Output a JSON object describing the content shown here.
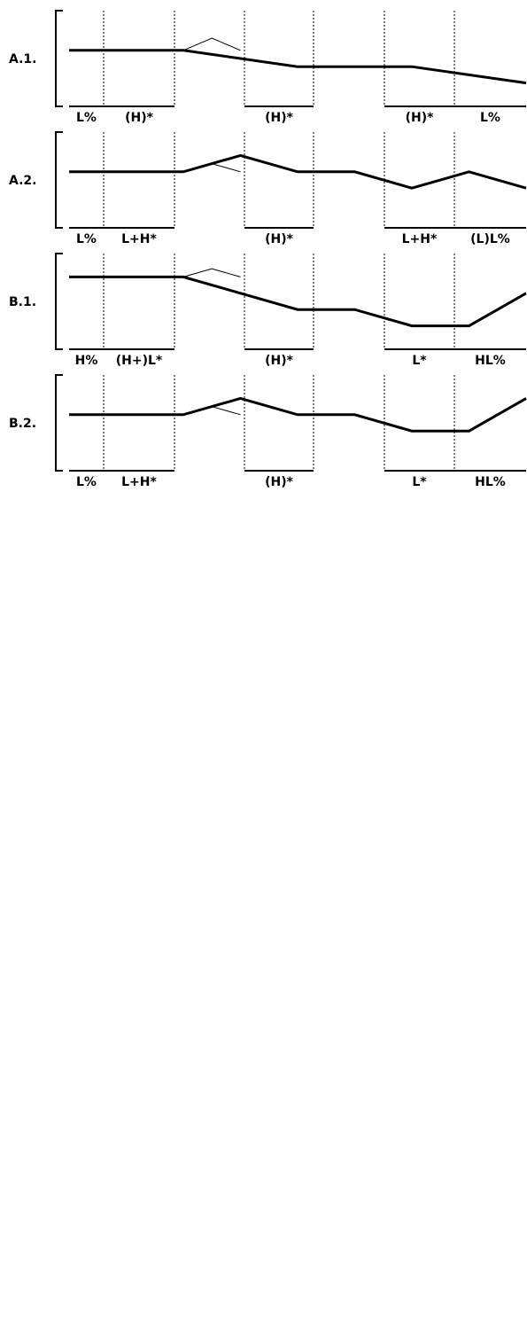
{
  "panels": [
    {
      "id": "A.1.",
      "labels": [
        "L%",
        "(H)*",
        "(H)*",
        "(H)*",
        "L%"
      ],
      "thick": [
        [
          0,
          100
        ],
        [
          160,
          100
        ],
        [
          320,
          80
        ],
        [
          480,
          80
        ],
        [
          640,
          60
        ]
      ],
      "thin": [
        [
          160,
          100
        ],
        [
          200,
          115
        ],
        [
          240,
          100
        ]
      ]
    },
    {
      "id": "A.2.",
      "labels": [
        "L%",
        "L+H*",
        "(H)*",
        "L+H*",
        "(L)L%"
      ],
      "thick": [
        [
          0,
          100
        ],
        [
          160,
          100
        ],
        [
          240,
          120
        ],
        [
          320,
          100
        ],
        [
          400,
          100
        ],
        [
          480,
          80
        ],
        [
          560,
          100
        ],
        [
          640,
          80
        ]
      ],
      "thin": [
        [
          160,
          100
        ],
        [
          200,
          110
        ],
        [
          240,
          100
        ]
      ]
    },
    {
      "id": "B.1.",
      "labels": [
        "H%",
        "(H+)L*",
        "(H)*",
        "L*",
        "HL%"
      ],
      "thick": [
        [
          0,
          120
        ],
        [
          160,
          120
        ],
        [
          240,
          100
        ],
        [
          320,
          80
        ],
        [
          400,
          80
        ],
        [
          480,
          60
        ],
        [
          560,
          60
        ],
        [
          640,
          100
        ]
      ],
      "thin": [
        [
          160,
          120
        ],
        [
          200,
          130
        ],
        [
          240,
          120
        ]
      ]
    },
    {
      "id": "B.2.",
      "labels": [
        "L%",
        "L+H*",
        "(H)*",
        "L*",
        "HL%"
      ],
      "thick": [
        [
          0,
          100
        ],
        [
          160,
          100
        ],
        [
          240,
          120
        ],
        [
          320,
          100
        ],
        [
          400,
          100
        ],
        [
          480,
          80
        ],
        [
          560,
          80
        ],
        [
          640,
          120
        ]
      ],
      "thin": [
        [
          160,
          100
        ],
        [
          200,
          110
        ],
        [
          240,
          100
        ]
      ]
    }
  ]
}
